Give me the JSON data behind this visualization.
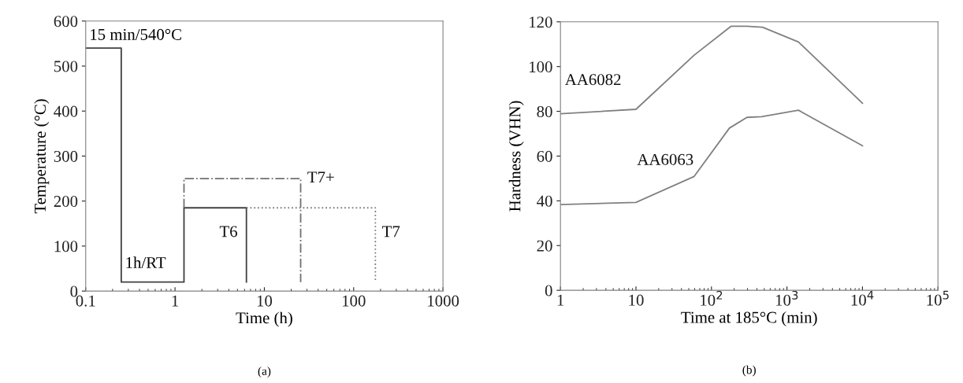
{
  "chart_data": [
    {
      "type": "line",
      "xlabel": "Time (h)",
      "ylabel": "Temperature (°C)",
      "log": "x",
      "xlim": [
        0.1,
        1000
      ],
      "xticks": [
        0.1,
        1,
        10,
        100,
        1000
      ],
      "ylim": [
        0,
        600
      ],
      "yticks": [
        0,
        100,
        200,
        300,
        400,
        500,
        600
      ],
      "grid": false,
      "legend": false,
      "series": [
        {
          "name": "T6",
          "color": "#404040",
          "line_style": "solid",
          "x": [
            0.1,
            0.25,
            0.25,
            1.26,
            1.26,
            6.3,
            6.3
          ],
          "values": [
            540,
            540,
            20,
            20,
            185,
            185,
            20
          ]
        },
        {
          "name": "T7+",
          "color": "#707070",
          "line_style": "dashdot",
          "x": [
            1.26,
            1.26,
            25.5,
            25.5
          ],
          "values": [
            185,
            250,
            250,
            20
          ]
        },
        {
          "name": "T7",
          "color": "#808080",
          "line_style": "dotted",
          "x": [
            6.3,
            175,
            175
          ],
          "values": [
            185,
            185,
            20
          ]
        }
      ],
      "annotations": [
        "15 min/540°C",
        "1h/RT",
        "(a)"
      ]
    },
    {
      "type": "line",
      "xlabel": "Time at 185°C (min)",
      "ylabel": "Hardness (VHN)",
      "log": "x",
      "xlim": [
        1,
        100000
      ],
      "xticks": [
        1,
        10,
        {
          "value": 100,
          "label": "10$^{2}$"
        },
        {
          "value": 1000,
          "label": "10$^{3}$"
        },
        {
          "value": 10000,
          "label": "10$^{4}$"
        },
        {
          "value": 100000,
          "label": "10$^{5}$"
        }
      ],
      "ylim": [
        0,
        120
      ],
      "yticks": [
        0,
        20,
        40,
        60,
        80,
        100,
        120
      ],
      "grid": false,
      "legend": false,
      "series": [
        {
          "name": "AA6082",
          "color": "#808080",
          "line_style": "solid",
          "x": [
            1,
            10,
            59,
            181,
            295,
            475,
            1420,
            10000
          ],
          "values": [
            78.9,
            80.9,
            105.1,
            118,
            118,
            117.6,
            111,
            83.6
          ]
        },
        {
          "name": "AA6063",
          "color": "#808080",
          "line_style": "solid",
          "x": [
            1,
            10,
            59,
            173,
            295,
            460,
            1420,
            10000
          ],
          "values": [
            38.3,
            39.3,
            50.9,
            72.5,
            77.3,
            77.6,
            80.5,
            64.6
          ]
        }
      ],
      "annotations": [
        "(b)"
      ]
    }
  ]
}
